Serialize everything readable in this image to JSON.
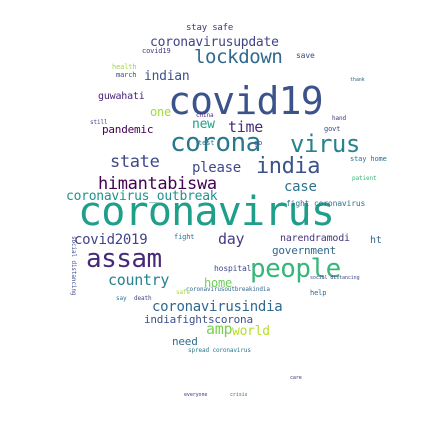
{
  "words": [
    {
      "text": "coronavirus",
      "color": "#1f9e89"
    },
    {
      "text": "covid19",
      "color": "#3b528b"
    },
    {
      "text": "corona",
      "color": "#2a788e"
    },
    {
      "text": "virus",
      "color": "#26828e"
    },
    {
      "text": "india",
      "color": "#3b528b"
    },
    {
      "text": "assam",
      "color": "#482878"
    },
    {
      "text": "people",
      "color": "#35b779"
    },
    {
      "text": "lockdown",
      "color": "#31688e"
    },
    {
      "text": "coronavirusupdate",
      "color": "#414487"
    },
    {
      "text": "himantabiswa",
      "color": "#440154"
    },
    {
      "text": "coronavirus_outbreak",
      "color": "#21918c"
    },
    {
      "text": "covid2019",
      "color": "#414487"
    },
    {
      "text": "day",
      "color": "#443983"
    },
    {
      "text": "state",
      "color": "#3e4989"
    },
    {
      "text": "please",
      "color": "#3e4989"
    },
    {
      "text": "country",
      "color": "#26828e"
    },
    {
      "text": "home",
      "color": "#6ece58"
    },
    {
      "text": "coronavirusindia",
      "color": "#31688e"
    },
    {
      "text": "indiafightscorona",
      "color": "#3b528b"
    },
    {
      "text": "amp",
      "color": "#7ad151"
    },
    {
      "text": "world",
      "color": "#b5de2b"
    },
    {
      "text": "case",
      "color": "#2c728e"
    },
    {
      "text": "time",
      "color": "#472d7b"
    },
    {
      "text": "pandemic",
      "color": "#440154"
    },
    {
      "text": "one",
      "color": "#9fda3a"
    },
    {
      "text": "new",
      "color": "#1fa187"
    },
    {
      "text": "indian",
      "color": "#3b528b"
    },
    {
      "text": "guwahati",
      "color": "#482475"
    },
    {
      "text": "narendramodi",
      "color": "#46337e"
    },
    {
      "text": "government",
      "color": "#31688e"
    },
    {
      "text": "need",
      "color": "#2d708e"
    },
    {
      "text": "stay safe",
      "color": "#46337e"
    },
    {
      "text": "fight coronavirus",
      "color": "#2c728e"
    },
    {
      "text": "stay home",
      "color": "#2c728e"
    },
    {
      "text": "march",
      "color": "#3e4989"
    },
    {
      "text": "health",
      "color": "#9fda3a"
    },
    {
      "text": "covid19",
      "color": "#46337e"
    },
    {
      "text": "hospital",
      "color": "#3e4989"
    },
    {
      "text": "fight",
      "color": "#2c728e"
    },
    {
      "text": "coronavirusoutbreakindia",
      "color": "#31688e"
    },
    {
      "text": "save",
      "color": "#3e4989"
    },
    {
      "text": "china",
      "color": "#472d7b"
    },
    {
      "text": "hand",
      "color": "#46337e"
    },
    {
      "text": "govt",
      "color": "#3e4989"
    },
    {
      "text": "help",
      "color": "#31688e"
    },
    {
      "text": "say",
      "color": "#2a788e"
    },
    {
      "text": "death",
      "color": "#3e4989"
    },
    {
      "text": "ht",
      "color": "#31688e"
    },
    {
      "text": "safe",
      "color": "#9fda3a"
    },
    {
      "text": "test",
      "color": "#31688e"
    },
    {
      "text": "go",
      "color": "#3b528b"
    },
    {
      "text": "still",
      "color": "#3e4989"
    },
    {
      "text": "thank",
      "color": "#31688e"
    },
    {
      "text": "social distancing",
      "color": "#3e4989"
    },
    {
      "text": "patient",
      "color": "#35b779"
    },
    {
      "text": "spread coronavirus",
      "color": "#2a788e"
    },
    {
      "text": "everyone",
      "color": "#46337e"
    },
    {
      "text": "crisis",
      "color": "#2c728e"
    },
    {
      "text": "care",
      "color": "#46337e"
    }
  ]
}
